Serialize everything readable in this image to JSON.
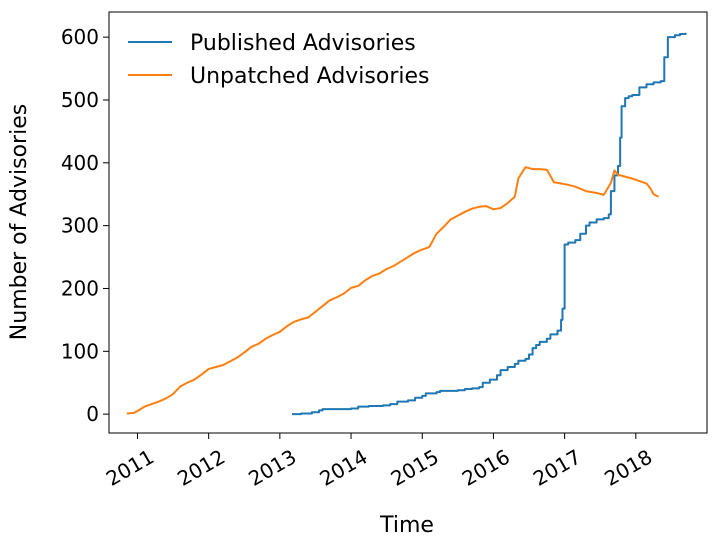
{
  "chart_data": {
    "type": "line",
    "title": "",
    "xlabel": "Time",
    "ylabel": "Number of Advisories",
    "xlim": [
      2010.6,
      2019.0
    ],
    "ylim": [
      -30,
      640
    ],
    "x_ticks": [
      2011,
      2012,
      2013,
      2014,
      2015,
      2016,
      2017,
      2018
    ],
    "y_ticks": [
      0,
      100,
      200,
      300,
      400,
      500,
      600
    ],
    "grid": false,
    "legend_position": "top-left",
    "series": [
      {
        "name": "Published Advisories",
        "color": "#1f77b4",
        "step": true,
        "points": [
          [
            2013.17,
            0
          ],
          [
            2013.3,
            1
          ],
          [
            2013.45,
            3
          ],
          [
            2013.55,
            6
          ],
          [
            2013.6,
            8
          ],
          [
            2014.0,
            9
          ],
          [
            2014.1,
            12
          ],
          [
            2014.25,
            13
          ],
          [
            2014.45,
            14
          ],
          [
            2014.55,
            16
          ],
          [
            2014.65,
            20
          ],
          [
            2014.8,
            22
          ],
          [
            2014.9,
            26
          ],
          [
            2015.0,
            29
          ],
          [
            2015.05,
            33
          ],
          [
            2015.2,
            35
          ],
          [
            2015.25,
            37
          ],
          [
            2015.5,
            38
          ],
          [
            2015.6,
            40
          ],
          [
            2015.7,
            41
          ],
          [
            2015.8,
            43
          ],
          [
            2015.85,
            50
          ],
          [
            2015.95,
            55
          ],
          [
            2016.05,
            62
          ],
          [
            2016.1,
            70
          ],
          [
            2016.2,
            75
          ],
          [
            2016.3,
            80
          ],
          [
            2016.35,
            85
          ],
          [
            2016.45,
            88
          ],
          [
            2016.5,
            95
          ],
          [
            2016.55,
            105
          ],
          [
            2016.6,
            110
          ],
          [
            2016.65,
            115
          ],
          [
            2016.75,
            120
          ],
          [
            2016.8,
            127
          ],
          [
            2016.9,
            133
          ],
          [
            2016.95,
            150
          ],
          [
            2016.97,
            168
          ],
          [
            2017.0,
            270
          ],
          [
            2017.05,
            273
          ],
          [
            2017.15,
            277
          ],
          [
            2017.22,
            287
          ],
          [
            2017.3,
            300
          ],
          [
            2017.35,
            305
          ],
          [
            2017.45,
            310
          ],
          [
            2017.55,
            312
          ],
          [
            2017.62,
            318
          ],
          [
            2017.65,
            355
          ],
          [
            2017.7,
            380
          ],
          [
            2017.75,
            395
          ],
          [
            2017.78,
            440
          ],
          [
            2017.8,
            490
          ],
          [
            2017.85,
            503
          ],
          [
            2017.9,
            506
          ],
          [
            2017.95,
            508
          ],
          [
            2018.05,
            520
          ],
          [
            2018.15,
            525
          ],
          [
            2018.25,
            528
          ],
          [
            2018.35,
            530
          ],
          [
            2018.4,
            568
          ],
          [
            2018.45,
            600
          ],
          [
            2018.55,
            603
          ],
          [
            2018.62,
            605
          ],
          [
            2018.7,
            607
          ]
        ]
      },
      {
        "name": "Unpatched Advisories",
        "color": "#ff7f0e",
        "step": false,
        "points": [
          [
            2010.85,
            1
          ],
          [
            2010.95,
            2
          ],
          [
            2011.0,
            5
          ],
          [
            2011.1,
            12
          ],
          [
            2011.2,
            16
          ],
          [
            2011.3,
            20
          ],
          [
            2011.4,
            25
          ],
          [
            2011.5,
            32
          ],
          [
            2011.6,
            44
          ],
          [
            2011.7,
            50
          ],
          [
            2011.8,
            55
          ],
          [
            2011.9,
            63
          ],
          [
            2012.0,
            72
          ],
          [
            2012.1,
            75
          ],
          [
            2012.2,
            78
          ],
          [
            2012.3,
            84
          ],
          [
            2012.4,
            90
          ],
          [
            2012.5,
            98
          ],
          [
            2012.6,
            107
          ],
          [
            2012.7,
            112
          ],
          [
            2012.8,
            120
          ],
          [
            2012.9,
            126
          ],
          [
            2013.0,
            131
          ],
          [
            2013.1,
            140
          ],
          [
            2013.2,
            147
          ],
          [
            2013.3,
            151
          ],
          [
            2013.4,
            154
          ],
          [
            2013.5,
            163
          ],
          [
            2013.6,
            172
          ],
          [
            2013.7,
            181
          ],
          [
            2013.8,
            186
          ],
          [
            2013.9,
            192
          ],
          [
            2014.0,
            201
          ],
          [
            2014.1,
            204
          ],
          [
            2014.2,
            213
          ],
          [
            2014.3,
            220
          ],
          [
            2014.4,
            224
          ],
          [
            2014.5,
            231
          ],
          [
            2014.6,
            236
          ],
          [
            2014.7,
            243
          ],
          [
            2014.8,
            250
          ],
          [
            2014.9,
            257
          ],
          [
            2015.0,
            262
          ],
          [
            2015.1,
            266
          ],
          [
            2015.2,
            287
          ],
          [
            2015.3,
            298
          ],
          [
            2015.4,
            310
          ],
          [
            2015.5,
            316
          ],
          [
            2015.6,
            322
          ],
          [
            2015.7,
            327
          ],
          [
            2015.8,
            330
          ],
          [
            2015.9,
            331
          ],
          [
            2016.0,
            326
          ],
          [
            2016.1,
            328
          ],
          [
            2016.2,
            336
          ],
          [
            2016.3,
            346
          ],
          [
            2016.35,
            375
          ],
          [
            2016.45,
            393
          ],
          [
            2016.55,
            390
          ],
          [
            2016.65,
            390
          ],
          [
            2016.75,
            389
          ],
          [
            2016.85,
            369
          ],
          [
            2016.95,
            367
          ],
          [
            2017.05,
            365
          ],
          [
            2017.15,
            362
          ],
          [
            2017.3,
            355
          ],
          [
            2017.45,
            352
          ],
          [
            2017.55,
            349
          ],
          [
            2017.65,
            368
          ],
          [
            2017.7,
            388
          ],
          [
            2017.75,
            381
          ],
          [
            2017.85,
            378
          ],
          [
            2017.95,
            375
          ],
          [
            2018.05,
            371
          ],
          [
            2018.15,
            367
          ],
          [
            2018.2,
            360
          ],
          [
            2018.25,
            350
          ],
          [
            2018.32,
            346
          ]
        ]
      }
    ]
  }
}
